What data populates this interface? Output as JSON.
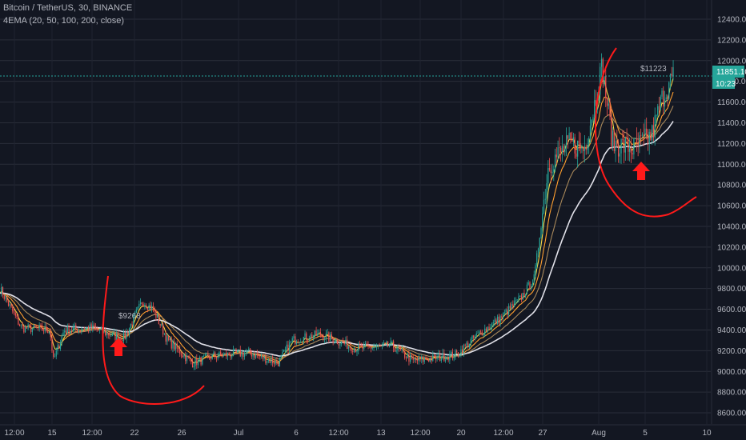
{
  "header": {
    "symbol": "Bitcoin / TetherUS, 30, BINANCE",
    "indicator": "4EMA (20, 50, 100, 200, close)"
  },
  "price_label": {
    "value": "11851.10",
    "countdown": "10:23"
  },
  "chart_data": {
    "type": "candlestick",
    "ylim": [
      8500,
      12500
    ],
    "y_ticks": [
      8600,
      8800,
      9000,
      9200,
      9400,
      9600,
      9800,
      10000,
      10200,
      10400,
      10600,
      10800,
      11000,
      11200,
      11400,
      11600,
      11800,
      12000,
      12200,
      12400
    ],
    "x_tick_labels": [
      "12:00",
      "15",
      "12:00",
      "22",
      "26",
      "Jul",
      "6",
      "12:00",
      "13",
      "12:00",
      "20",
      "12:00",
      "27",
      "Aug",
      "5",
      "10"
    ],
    "grid": true,
    "last_price": 11851.1,
    "annotations": [
      "$9268",
      "$11223"
    ],
    "price_path": [
      {
        "t": 0,
        "p": 9800
      },
      {
        "t": 0.03,
        "p": 9420
      },
      {
        "t": 0.07,
        "p": 9400
      },
      {
        "t": 0.075,
        "p": 9100
      },
      {
        "t": 0.09,
        "p": 9400
      },
      {
        "t": 0.13,
        "p": 9420
      },
      {
        "t": 0.16,
        "p": 9340
      },
      {
        "t": 0.175,
        "p": 9330
      },
      {
        "t": 0.2,
        "p": 9680
      },
      {
        "t": 0.215,
        "p": 9600
      },
      {
        "t": 0.235,
        "p": 9300
      },
      {
        "t": 0.27,
        "p": 9080
      },
      {
        "t": 0.3,
        "p": 9150
      },
      {
        "t": 0.35,
        "p": 9180
      },
      {
        "t": 0.39,
        "p": 9080
      },
      {
        "t": 0.41,
        "p": 9300
      },
      {
        "t": 0.45,
        "p": 9360
      },
      {
        "t": 0.5,
        "p": 9220
      },
      {
        "t": 0.55,
        "p": 9250
      },
      {
        "t": 0.58,
        "p": 9100
      },
      {
        "t": 0.64,
        "p": 9160
      },
      {
        "t": 0.67,
        "p": 9350
      },
      {
        "t": 0.7,
        "p": 9500
      },
      {
        "t": 0.73,
        "p": 9700
      },
      {
        "t": 0.75,
        "p": 9900
      },
      {
        "t": 0.77,
        "p": 11000
      },
      {
        "t": 0.8,
        "p": 11200
      },
      {
        "t": 0.82,
        "p": 11150
      },
      {
        "t": 0.835,
        "p": 11600
      },
      {
        "t": 0.845,
        "p": 11950
      },
      {
        "t": 0.86,
        "p": 11200
      },
      {
        "t": 0.89,
        "p": 11150
      },
      {
        "t": 0.915,
        "p": 11280
      },
      {
        "t": 0.93,
        "p": 11650
      },
      {
        "t": 0.945,
        "p": 11851
      }
    ]
  }
}
